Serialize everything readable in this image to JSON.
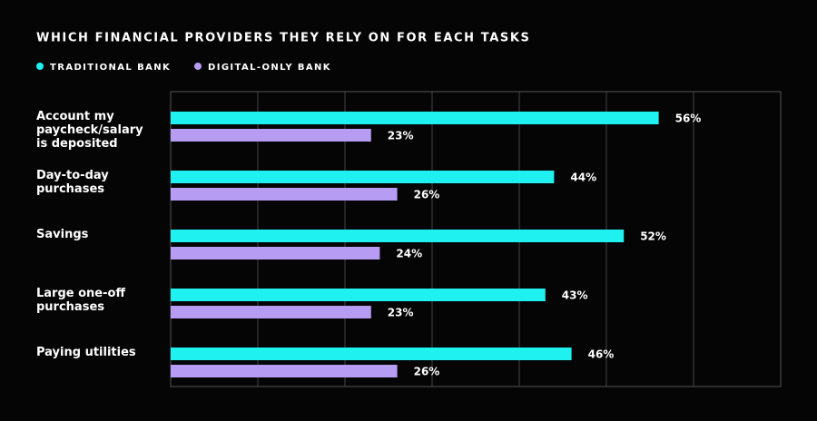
{
  "chart_data": {
    "type": "hbar",
    "title": "WHICH FINANCIAL PROVIDERS THEY RELY ON FOR EACH TASKS",
    "categories": [
      "Account my paycheck/salary is deposited",
      "Day-to-day purchases",
      "Savings",
      "Large one-off purchases",
      "Paying utilities"
    ],
    "series": [
      {
        "name": "TRADITIONAL BANK",
        "color": "#1ff0f0",
        "values": [
          56,
          44,
          52,
          43,
          46
        ],
        "value_labels": [
          "56%",
          "44%",
          "52%",
          "43%",
          "46%"
        ]
      },
      {
        "name": "DIGITAL-ONLY BANK",
        "color": "#b69cf3",
        "values": [
          23,
          26,
          24,
          23,
          26
        ],
        "value_labels": [
          "23%",
          "26%",
          "24%",
          "23%",
          "26%"
        ]
      }
    ],
    "xlim": [
      0,
      70
    ],
    "xticks": [
      0,
      10,
      20,
      30,
      40,
      50,
      60,
      70
    ],
    "grid": true
  }
}
